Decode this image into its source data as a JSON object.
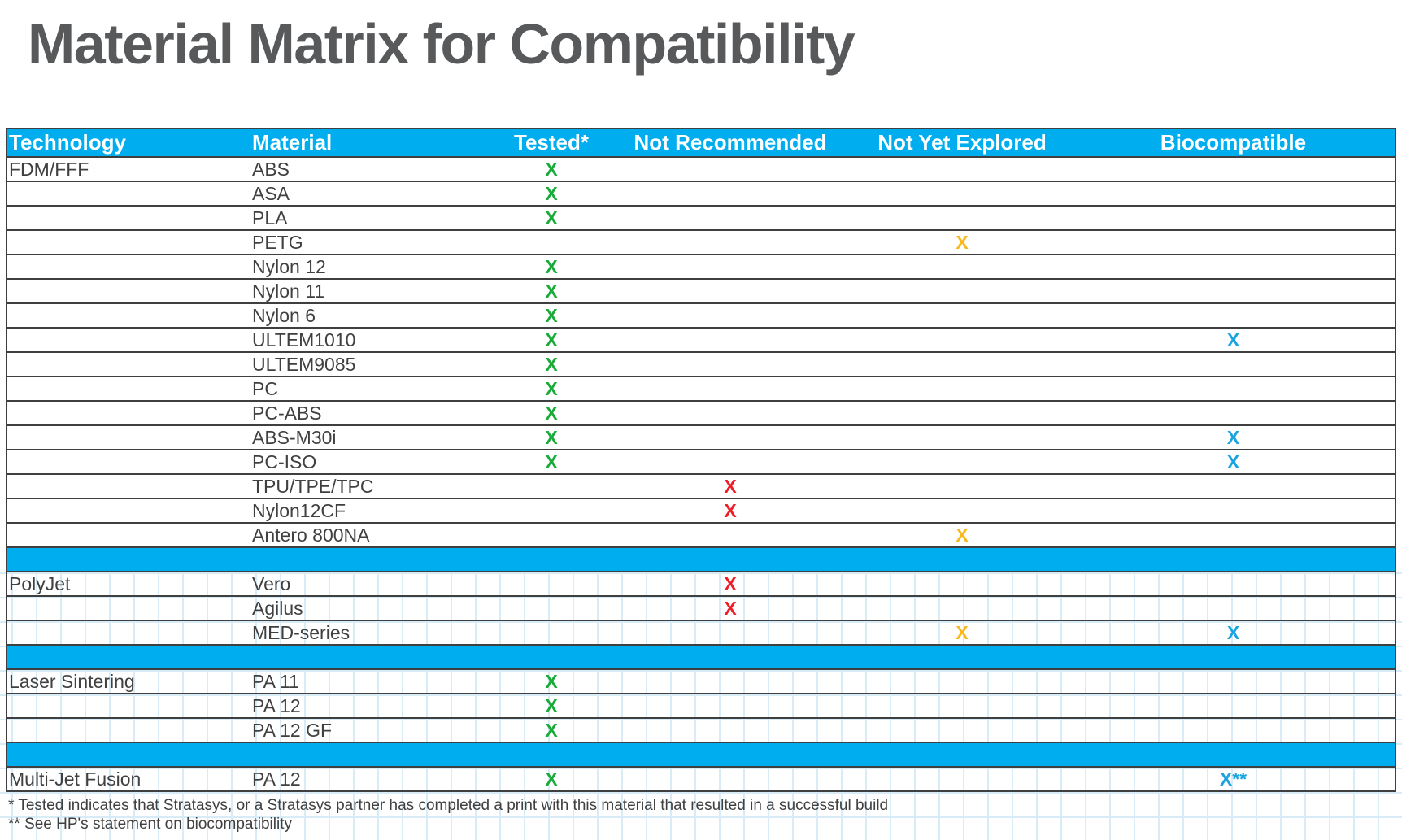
{
  "title": "Material Matrix for Compatibility",
  "colors": {
    "header_bg": "#00aeef",
    "tested": "#1aaa3a",
    "not_recommended": "#ee1c24",
    "not_yet_explored": "#f9b81b",
    "biocompatible": "#1ba3e0"
  },
  "table": {
    "headers": [
      "Technology",
      "Material",
      "Tested*",
      "Not Recommended",
      "Not Yet Explored",
      "Biocompatible"
    ],
    "rows": [
      {
        "tech": "FDM/FFF",
        "material": "ABS",
        "tested": "X",
        "not_recommended": "",
        "not_yet_explored": "",
        "biocompatible": ""
      },
      {
        "tech": "",
        "material": "ASA",
        "tested": "X",
        "not_recommended": "",
        "not_yet_explored": "",
        "biocompatible": ""
      },
      {
        "tech": "",
        "material": "PLA",
        "tested": "X",
        "not_recommended": "",
        "not_yet_explored": "",
        "biocompatible": ""
      },
      {
        "tech": "",
        "material": "PETG",
        "tested": "",
        "not_recommended": "",
        "not_yet_explored": "X",
        "biocompatible": ""
      },
      {
        "tech": "",
        "material": "Nylon 12",
        "tested": "X",
        "not_recommended": "",
        "not_yet_explored": "",
        "biocompatible": ""
      },
      {
        "tech": "",
        "material": "Nylon 11",
        "tested": "X",
        "not_recommended": "",
        "not_yet_explored": "",
        "biocompatible": ""
      },
      {
        "tech": "",
        "material": "Nylon 6",
        "tested": "X",
        "not_recommended": "",
        "not_yet_explored": "",
        "biocompatible": ""
      },
      {
        "tech": "",
        "material": "ULTEM1010",
        "tested": "X",
        "not_recommended": "",
        "not_yet_explored": "",
        "biocompatible": "X"
      },
      {
        "tech": "",
        "material": "ULTEM9085",
        "tested": "X",
        "not_recommended": "",
        "not_yet_explored": "",
        "biocompatible": ""
      },
      {
        "tech": "",
        "material": "PC",
        "tested": "X",
        "not_recommended": "",
        "not_yet_explored": "",
        "biocompatible": ""
      },
      {
        "tech": "",
        "material": "PC-ABS",
        "tested": "X",
        "not_recommended": "",
        "not_yet_explored": "",
        "biocompatible": ""
      },
      {
        "tech": "",
        "material": "ABS-M30i",
        "tested": "X",
        "not_recommended": "",
        "not_yet_explored": "",
        "biocompatible": "X"
      },
      {
        "tech": "",
        "material": "PC-ISO",
        "tested": "X",
        "not_recommended": "",
        "not_yet_explored": "",
        "biocompatible": "X"
      },
      {
        "tech": "",
        "material": "TPU/TPE/TPC",
        "tested": "",
        "not_recommended": "X",
        "not_yet_explored": "",
        "biocompatible": ""
      },
      {
        "tech": "",
        "material": "Nylon12CF",
        "tested": "",
        "not_recommended": "X",
        "not_yet_explored": "",
        "biocompatible": ""
      },
      {
        "tech": "",
        "material": "Antero 800NA",
        "tested": "",
        "not_recommended": "",
        "not_yet_explored": "X",
        "biocompatible": ""
      },
      {
        "spacer": true
      },
      {
        "tech": "PolyJet",
        "material": "Vero",
        "tested": "",
        "not_recommended": "X",
        "not_yet_explored": "",
        "biocompatible": ""
      },
      {
        "tech": "",
        "material": "Agilus",
        "tested": "",
        "not_recommended": "X",
        "not_yet_explored": "",
        "biocompatible": ""
      },
      {
        "tech": "",
        "material": "MED-series",
        "tested": "",
        "not_recommended": "",
        "not_yet_explored": "X",
        "biocompatible": "X"
      },
      {
        "spacer": true
      },
      {
        "tech": "Laser Sintering",
        "material": "PA 11",
        "tested": "X",
        "not_recommended": "",
        "not_yet_explored": "",
        "biocompatible": ""
      },
      {
        "tech": "",
        "material": "PA 12",
        "tested": "X",
        "not_recommended": "",
        "not_yet_explored": "",
        "biocompatible": ""
      },
      {
        "tech": "",
        "material": "PA 12 GF",
        "tested": "X",
        "not_recommended": "",
        "not_yet_explored": "",
        "biocompatible": ""
      },
      {
        "spacer": true
      },
      {
        "tech": "Multi-Jet Fusion",
        "material": "PA 12",
        "tested": "X",
        "not_recommended": "",
        "not_yet_explored": "",
        "biocompatible": "X**"
      }
    ]
  },
  "footnotes": [
    "* Tested indicates that Stratasys, or a Stratasys partner has completed a print with this material that resulted in a successful build",
    "** See HP's statement on biocompatibility"
  ]
}
